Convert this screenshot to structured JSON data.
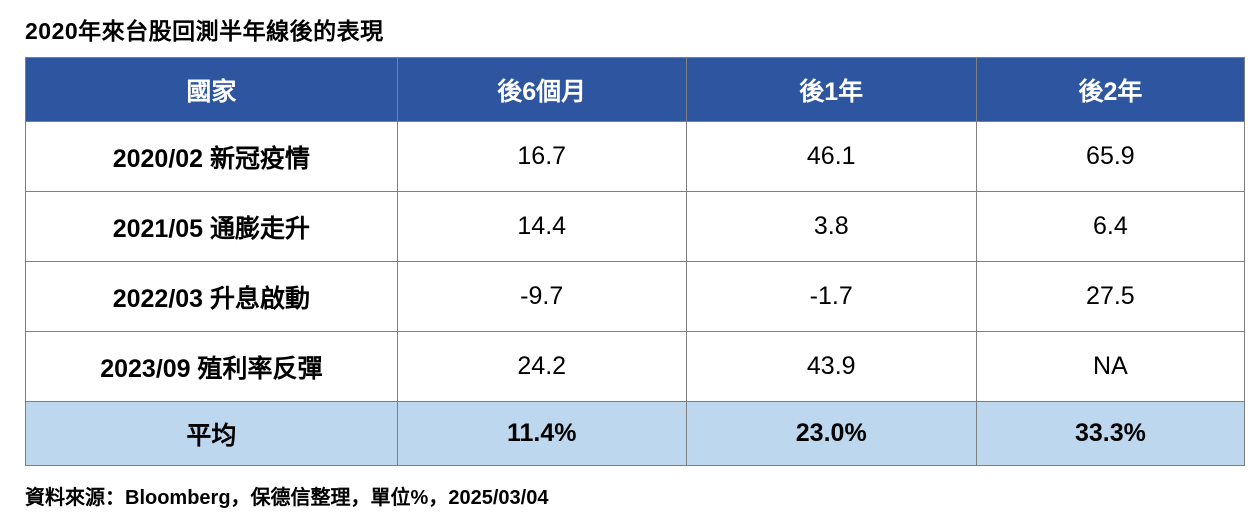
{
  "title": "2020年來台股回測半年線後的表現",
  "source_note": "資料來源：Bloomberg，保德信整理，單位%，2025/03/04",
  "colors": {
    "header_bg": "#2e56a0",
    "header_text": "#ffffff",
    "average_row_bg": "#bdd7ee",
    "grid_border": "#7f7f7f",
    "body_text": "#000000"
  },
  "chart_data": {
    "type": "table",
    "title": "2020年來台股回測半年線後的表現",
    "unit": "%",
    "columns": [
      "國家",
      "後6個月",
      "後1年",
      "後2年"
    ],
    "rows": [
      {
        "label": "2020/02 新冠疫情",
        "values": [
          "16.7",
          "46.1",
          "65.9"
        ]
      },
      {
        "label": "2021/05 通膨走升",
        "values": [
          "14.4",
          "3.8",
          "6.4"
        ]
      },
      {
        "label": "2022/03 升息啟動",
        "values": [
          "-9.7",
          "-1.7",
          "27.5"
        ]
      },
      {
        "label": "2023/09 殖利率反彈",
        "values": [
          "24.2",
          "43.9",
          "NA"
        ]
      }
    ],
    "summary_row": {
      "label": "平均",
      "values": [
        "11.4%",
        "23.0%",
        "33.3%"
      ]
    }
  }
}
